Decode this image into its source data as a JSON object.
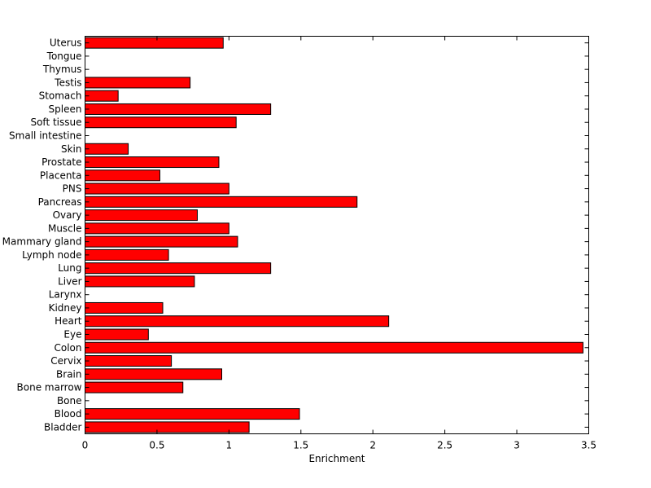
{
  "chart_data": {
    "type": "bar",
    "orientation": "horizontal",
    "title": "",
    "xlabel": "Enrichment",
    "ylabel": "",
    "xlim": [
      0,
      3.5
    ],
    "xticks": [
      "0",
      "0.5",
      "1",
      "1.5",
      "2",
      "2.5",
      "3",
      "3.5"
    ],
    "grid": false,
    "bar_color": "#ff0000",
    "categories": [
      "Bladder",
      "Blood",
      "Bone",
      "Bone marrow",
      "Brain",
      "Cervix",
      "Colon",
      "Eye",
      "Heart",
      "Kidney",
      "Larynx",
      "Liver",
      "Lung",
      "Lymph node",
      "Mammary gland",
      "Muscle",
      "Ovary",
      "Pancreas",
      "PNS",
      "Placenta",
      "Prostate",
      "Skin",
      "Small intestine",
      "Soft tissue",
      "Spleen",
      "Stomach",
      "Testis",
      "Thymus",
      "Tongue",
      "Uterus"
    ],
    "values": [
      1.14,
      1.49,
      0,
      0.68,
      0.95,
      0.6,
      3.46,
      0.44,
      2.11,
      0.54,
      0,
      0.76,
      1.29,
      0.58,
      1.06,
      1.0,
      0.78,
      1.89,
      1.0,
      0.52,
      0.93,
      0.3,
      0,
      1.05,
      1.29,
      0.23,
      0.73,
      0,
      0,
      0.96
    ]
  }
}
